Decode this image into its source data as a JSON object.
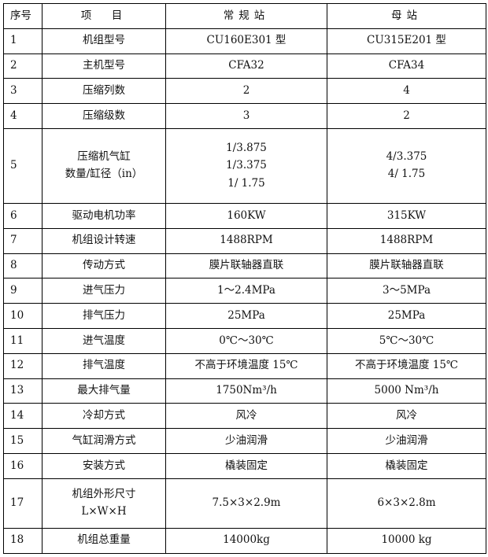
{
  "headers": [
    "序号",
    "项　目",
    "常规站",
    "母站"
  ],
  "rows": [
    {
      "no": "1",
      "item": [
        "机组型号"
      ],
      "regular": [
        "CU160E301 型"
      ],
      "mother": [
        "CU315E201 型"
      ]
    },
    {
      "no": "2",
      "item": [
        "主机型号"
      ],
      "regular": [
        "CFA32"
      ],
      "mother": [
        "CFA34"
      ]
    },
    {
      "no": "3",
      "item": [
        "压缩列数"
      ],
      "regular": [
        "2"
      ],
      "mother": [
        "4"
      ]
    },
    {
      "no": "4",
      "item": [
        "压缩级数"
      ],
      "regular": [
        "3"
      ],
      "mother": [
        "2"
      ]
    },
    {
      "no": "5",
      "item": [
        "压缩机气缸",
        "数量/缸径（in）"
      ],
      "regular": [
        "1/3.875",
        "1/3.375",
        "1/ 1.75"
      ],
      "mother": [
        "4/3.375",
        "4/ 1.75"
      ]
    },
    {
      "no": "6",
      "item": [
        "驱动电机功率"
      ],
      "regular": [
        "160KW"
      ],
      "mother": [
        "315KW"
      ]
    },
    {
      "no": "7",
      "item": [
        "机组设计转速"
      ],
      "regular": [
        "1488RPM"
      ],
      "mother": [
        "1488RPM"
      ]
    },
    {
      "no": "8",
      "item": [
        "传动方式"
      ],
      "regular": [
        "膜片联轴器直联"
      ],
      "mother": [
        "膜片联轴器直联"
      ]
    },
    {
      "no": "9",
      "item": [
        "进气压力"
      ],
      "regular": [
        "1～2.4MPa"
      ],
      "mother": [
        "3～5MPa"
      ]
    },
    {
      "no": "10",
      "item": [
        "排气压力"
      ],
      "regular": [
        "25MPa"
      ],
      "mother": [
        "25MPa"
      ]
    },
    {
      "no": "11",
      "item": [
        "进气温度"
      ],
      "regular": [
        "0℃～30℃"
      ],
      "mother": [
        "5℃～30℃"
      ]
    },
    {
      "no": "12",
      "item": [
        "排气温度"
      ],
      "regular": [
        "不高于环境温度 15℃"
      ],
      "mother": [
        "不高于环境温度 15℃"
      ]
    },
    {
      "no": "13",
      "item": [
        "最大排气量"
      ],
      "regular": [
        "1750Nm³/h"
      ],
      "mother": [
        "5000 Nm³/h"
      ]
    },
    {
      "no": "14",
      "item": [
        "冷却方式"
      ],
      "regular": [
        "风冷"
      ],
      "mother": [
        "风冷"
      ]
    },
    {
      "no": "15",
      "item": [
        "气缸润滑方式"
      ],
      "regular": [
        "少油润滑"
      ],
      "mother": [
        "少油润滑"
      ]
    },
    {
      "no": "16",
      "item": [
        "安装方式"
      ],
      "regular": [
        "橇装固定"
      ],
      "mother": [
        "橇装固定"
      ]
    },
    {
      "no": "17",
      "item": [
        "机组外形尺寸",
        "L×W×H"
      ],
      "regular": [
        "7.5×3×2.9m"
      ],
      "mother": [
        "6×3×2.8m"
      ]
    },
    {
      "no": "18",
      "item": [
        "机组总重量"
      ],
      "regular": [
        "14000kg"
      ],
      "mother": [
        "10000 kg"
      ]
    }
  ]
}
